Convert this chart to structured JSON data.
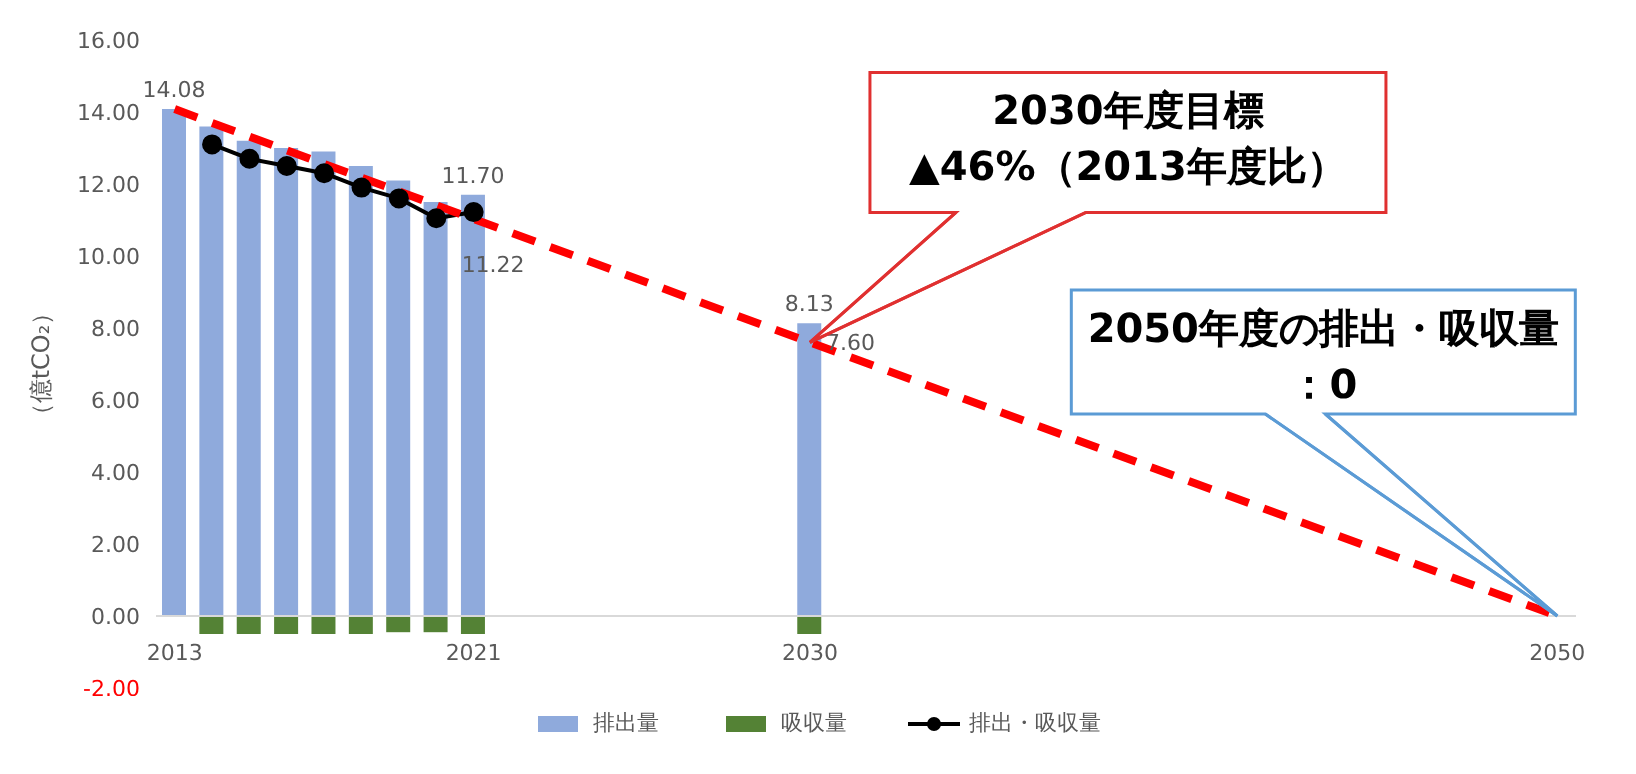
{
  "chart_data": {
    "type": "bar",
    "stacked": true,
    "ylabel": "（億tCO₂）",
    "xlim": [
      2012.5,
      2050.5
    ],
    "xticks": [
      2013,
      2021,
      2030,
      2050
    ],
    "ylim": [
      -2,
      16
    ],
    "yticks": [
      {
        "value": -2,
        "label": "-2.00"
      },
      {
        "value": 0,
        "label": "0.00"
      },
      {
        "value": 2,
        "label": "2.00"
      },
      {
        "value": 4,
        "label": "4.00"
      },
      {
        "value": 6,
        "label": "6.00"
      },
      {
        "value": 8,
        "label": "8.00"
      },
      {
        "value": 10,
        "label": "10.00"
      },
      {
        "value": 12,
        "label": "12.00"
      },
      {
        "value": 14,
        "label": "14.00"
      },
      {
        "value": 16,
        "label": "16.00"
      }
    ],
    "grid": false,
    "legend": "bottom",
    "marker": "circle",
    "series": [
      {
        "name": "排出量",
        "color": "#8faadc",
        "x": [
          2013,
          2014,
          2015,
          2016,
          2017,
          2018,
          2019,
          2020,
          2021,
          2030
        ],
        "values": [
          14.08,
          13.6,
          13.2,
          13.0,
          12.9,
          12.5,
          12.1,
          11.5,
          11.7,
          8.13
        ],
        "value_labels": [
          "14.08",
          null,
          null,
          null,
          null,
          null,
          null,
          null,
          "11.70",
          "8.13"
        ]
      },
      {
        "name": "吸収量",
        "color": "#548235",
        "x": [
          2014,
          2015,
          2016,
          2017,
          2018,
          2019,
          2020,
          2021,
          2030
        ],
        "values": [
          -0.5,
          -0.5,
          -0.5,
          -0.5,
          -0.5,
          -0.45,
          -0.45,
          -0.5,
          -0.5
        ]
      },
      {
        "name": "排出・吸収量",
        "type": "line",
        "color": "#000000",
        "x": [
          2014,
          2015,
          2016,
          2017,
          2018,
          2019,
          2020,
          2021
        ],
        "values": [
          13.1,
          12.7,
          12.5,
          12.3,
          11.9,
          11.6,
          11.05,
          11.22
        ],
        "value_labels": [
          null,
          null,
          null,
          null,
          null,
          null,
          null,
          "11.22"
        ]
      },
      {
        "type": "line",
        "color": "#ff0000",
        "line_style": "dashed",
        "marker": "none",
        "x": [
          2013,
          2030,
          2050
        ],
        "values": [
          14.08,
          7.6,
          0
        ],
        "value_labels": [
          null,
          "7.60",
          null
        ]
      }
    ],
    "annotations": [
      {
        "text": "2030年度目標\n▲46%（2013年度比）",
        "x": 2030,
        "y": 7.6
      },
      {
        "text": "2050年度の排出・吸収量：0",
        "x": 2050,
        "y": 0
      }
    ]
  }
}
